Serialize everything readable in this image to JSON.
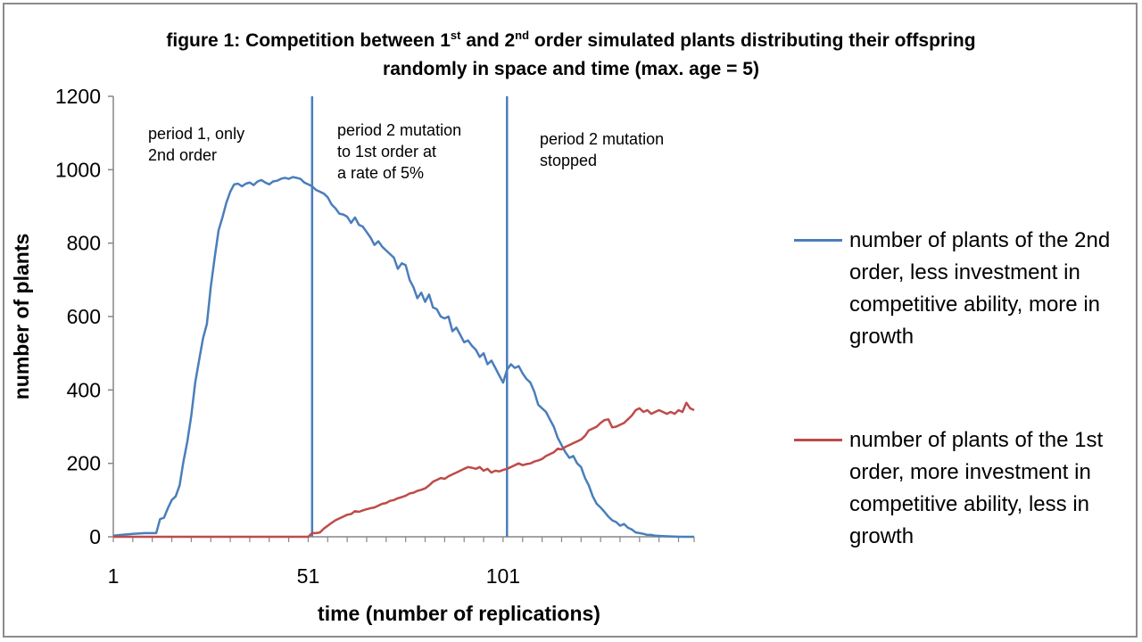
{
  "title_parts": {
    "prefix": "figure  1:  Competition between 1",
    "sup1": "st",
    "mid": " and 2",
    "sup2": "nd",
    "suffix": " order simulated plants distributing their offspring",
    "line2": "randomly in space and time  (max. age =  5)"
  },
  "annotations": {
    "period1": "period 1, only\n 2nd order",
    "period2": "period 2 mutation\nto 1st  order at\na rate of  5%",
    "period3": "period 2 mutation\nstopped"
  },
  "colors": {
    "series1": "#4a7ebb",
    "series2": "#be4b48",
    "axis": "#868686",
    "vline": "#4a7ebb"
  },
  "chart_data": {
    "type": "line",
    "title": "figure 1: Competition between 1st and 2nd order simulated plants distributing their offspring randomly in space and time (max. age = 5)",
    "xlabel": "time (number of replications)",
    "ylabel": "number of plants",
    "xlim": [
      1,
      150
    ],
    "ylim": [
      0,
      1200
    ],
    "x_ticks": [
      "1",
      "51",
      "101"
    ],
    "y_ticks": [
      "0",
      "200",
      "400",
      "600",
      "800",
      "1000",
      "1200"
    ],
    "grid": false,
    "legend_position": "right",
    "vertical_lines_x": [
      52,
      102
    ],
    "series": [
      {
        "name": "number of plants of the 2nd order, less investment in competitive ability, more in growth",
        "color": "#4a7ebb",
        "points": [
          [
            1,
            3
          ],
          [
            3,
            5
          ],
          [
            6,
            8
          ],
          [
            9,
            10
          ],
          [
            12,
            10
          ],
          [
            13,
            48
          ],
          [
            14,
            52
          ],
          [
            15,
            78
          ],
          [
            16,
            100
          ],
          [
            17,
            110
          ],
          [
            18,
            140
          ],
          [
            19,
            205
          ],
          [
            20,
            260
          ],
          [
            21,
            330
          ],
          [
            22,
            420
          ],
          [
            23,
            480
          ],
          [
            24,
            540
          ],
          [
            25,
            580
          ],
          [
            26,
            680
          ],
          [
            27,
            760
          ],
          [
            28,
            835
          ],
          [
            29,
            870
          ],
          [
            30,
            910
          ],
          [
            31,
            940
          ],
          [
            32,
            960
          ],
          [
            33,
            962
          ],
          [
            34,
            955
          ],
          [
            35,
            962
          ],
          [
            36,
            965
          ],
          [
            37,
            958
          ],
          [
            38,
            968
          ],
          [
            39,
            972
          ],
          [
            40,
            965
          ],
          [
            41,
            960
          ],
          [
            42,
            968
          ],
          [
            43,
            970
          ],
          [
            44,
            975
          ],
          [
            45,
            978
          ],
          [
            46,
            975
          ],
          [
            47,
            980
          ],
          [
            48,
            978
          ],
          [
            49,
            975
          ],
          [
            50,
            965
          ],
          [
            51,
            960
          ],
          [
            52,
            955
          ],
          [
            53,
            945
          ],
          [
            54,
            940
          ],
          [
            55,
            935
          ],
          [
            56,
            925
          ],
          [
            57,
            905
          ],
          [
            58,
            895
          ],
          [
            59,
            880
          ],
          [
            60,
            878
          ],
          [
            61,
            872
          ],
          [
            62,
            855
          ],
          [
            63,
            870
          ],
          [
            64,
            850
          ],
          [
            65,
            845
          ],
          [
            66,
            830
          ],
          [
            67,
            815
          ],
          [
            68,
            795
          ],
          [
            69,
            805
          ],
          [
            70,
            790
          ],
          [
            71,
            780
          ],
          [
            72,
            770
          ],
          [
            73,
            760
          ],
          [
            74,
            730
          ],
          [
            75,
            745
          ],
          [
            76,
            740
          ],
          [
            77,
            700
          ],
          [
            78,
            680
          ],
          [
            79,
            650
          ],
          [
            80,
            665
          ],
          [
            81,
            640
          ],
          [
            82,
            660
          ],
          [
            83,
            625
          ],
          [
            84,
            620
          ],
          [
            85,
            600
          ],
          [
            86,
            595
          ],
          [
            87,
            600
          ],
          [
            88,
            560
          ],
          [
            89,
            570
          ],
          [
            90,
            550
          ],
          [
            91,
            530
          ],
          [
            92,
            535
          ],
          [
            93,
            520
          ],
          [
            94,
            510
          ],
          [
            95,
            490
          ],
          [
            96,
            500
          ],
          [
            97,
            470
          ],
          [
            98,
            480
          ],
          [
            99,
            460
          ],
          [
            100,
            440
          ],
          [
            101,
            420
          ],
          [
            102,
            455
          ],
          [
            103,
            470
          ],
          [
            104,
            460
          ],
          [
            105,
            465
          ],
          [
            106,
            445
          ],
          [
            107,
            430
          ],
          [
            108,
            420
          ],
          [
            109,
            395
          ],
          [
            110,
            360
          ],
          [
            111,
            350
          ],
          [
            112,
            340
          ],
          [
            113,
            320
          ],
          [
            114,
            300
          ],
          [
            115,
            270
          ],
          [
            116,
            250
          ],
          [
            117,
            230
          ],
          [
            118,
            215
          ],
          [
            119,
            220
          ],
          [
            120,
            200
          ],
          [
            121,
            190
          ],
          [
            122,
            160
          ],
          [
            123,
            140
          ],
          [
            124,
            110
          ],
          [
            125,
            90
          ],
          [
            126,
            80
          ],
          [
            127,
            68
          ],
          [
            128,
            55
          ],
          [
            129,
            45
          ],
          [
            130,
            40
          ],
          [
            131,
            30
          ],
          [
            132,
            35
          ],
          [
            133,
            25
          ],
          [
            134,
            20
          ],
          [
            135,
            12
          ],
          [
            136,
            10
          ],
          [
            137,
            8
          ],
          [
            138,
            5
          ],
          [
            139,
            5
          ],
          [
            140,
            3
          ],
          [
            142,
            2
          ],
          [
            144,
            1
          ],
          [
            147,
            0
          ],
          [
            150,
            0
          ]
        ]
      },
      {
        "name": "number of plants of the 1st order, more investment in competitive ability, less in growth",
        "color": "#be4b48",
        "points": [
          [
            1,
            0
          ],
          [
            51,
            0
          ],
          [
            52,
            10
          ],
          [
            53,
            10
          ],
          [
            54,
            12
          ],
          [
            55,
            22
          ],
          [
            56,
            30
          ],
          [
            57,
            38
          ],
          [
            58,
            45
          ],
          [
            59,
            50
          ],
          [
            60,
            55
          ],
          [
            61,
            60
          ],
          [
            62,
            62
          ],
          [
            63,
            70
          ],
          [
            64,
            68
          ],
          [
            65,
            72
          ],
          [
            66,
            75
          ],
          [
            67,
            78
          ],
          [
            68,
            80
          ],
          [
            69,
            85
          ],
          [
            70,
            90
          ],
          [
            71,
            92
          ],
          [
            72,
            98
          ],
          [
            73,
            100
          ],
          [
            74,
            105
          ],
          [
            75,
            108
          ],
          [
            76,
            112
          ],
          [
            77,
            118
          ],
          [
            78,
            120
          ],
          [
            79,
            125
          ],
          [
            80,
            128
          ],
          [
            81,
            132
          ],
          [
            82,
            140
          ],
          [
            83,
            150
          ],
          [
            84,
            155
          ],
          [
            85,
            160
          ],
          [
            86,
            158
          ],
          [
            87,
            165
          ],
          [
            88,
            170
          ],
          [
            89,
            175
          ],
          [
            90,
            180
          ],
          [
            91,
            185
          ],
          [
            92,
            190
          ],
          [
            93,
            188
          ],
          [
            94,
            185
          ],
          [
            95,
            190
          ],
          [
            96,
            180
          ],
          [
            97,
            185
          ],
          [
            98,
            175
          ],
          [
            99,
            180
          ],
          [
            100,
            178
          ],
          [
            101,
            182
          ],
          [
            102,
            185
          ],
          [
            103,
            190
          ],
          [
            104,
            195
          ],
          [
            105,
            200
          ],
          [
            106,
            195
          ],
          [
            107,
            198
          ],
          [
            108,
            200
          ],
          [
            109,
            205
          ],
          [
            110,
            208
          ],
          [
            111,
            212
          ],
          [
            112,
            220
          ],
          [
            113,
            225
          ],
          [
            114,
            230
          ],
          [
            115,
            240
          ],
          [
            116,
            238
          ],
          [
            117,
            245
          ],
          [
            118,
            250
          ],
          [
            119,
            255
          ],
          [
            120,
            260
          ],
          [
            121,
            265
          ],
          [
            122,
            275
          ],
          [
            123,
            290
          ],
          [
            124,
            295
          ],
          [
            125,
            300
          ],
          [
            126,
            310
          ],
          [
            127,
            318
          ],
          [
            128,
            320
          ],
          [
            129,
            298
          ],
          [
            130,
            300
          ],
          [
            131,
            305
          ],
          [
            132,
            310
          ],
          [
            133,
            320
          ],
          [
            134,
            330
          ],
          [
            135,
            345
          ],
          [
            136,
            350
          ],
          [
            137,
            340
          ],
          [
            138,
            345
          ],
          [
            139,
            335
          ],
          [
            140,
            340
          ],
          [
            141,
            345
          ],
          [
            142,
            340
          ],
          [
            143,
            335
          ],
          [
            144,
            340
          ],
          [
            145,
            335
          ],
          [
            146,
            345
          ],
          [
            147,
            340
          ],
          [
            148,
            365
          ],
          [
            149,
            350
          ],
          [
            150,
            345
          ]
        ]
      }
    ]
  }
}
